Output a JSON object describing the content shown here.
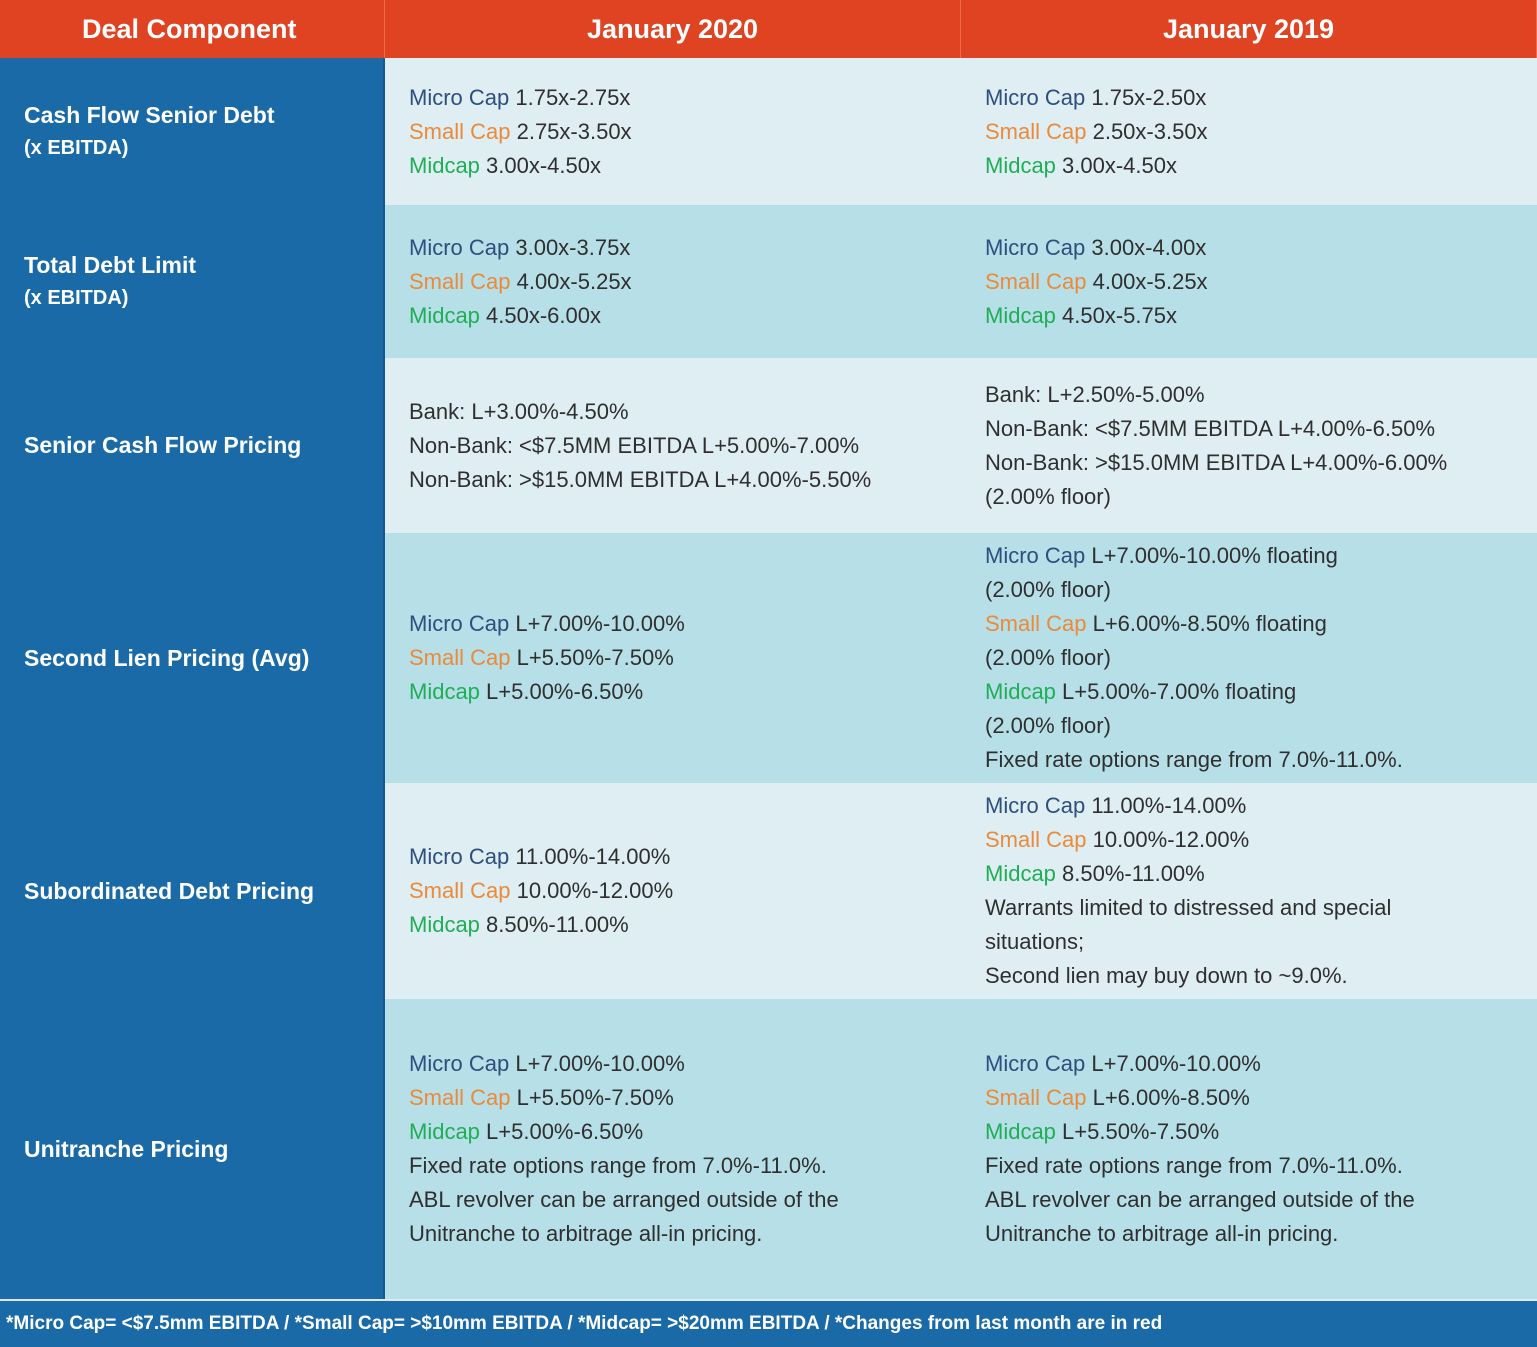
{
  "header": {
    "col1": "Deal Component",
    "col2": "January 2020",
    "col3": "January 2019"
  },
  "colors": {
    "header_bg": "#e04322",
    "label_bg": "#1b6aa8",
    "row_light": "#deeef3",
    "row_dark": "#b7dfe7",
    "micro_cap": "#2e4e7e",
    "small_cap": "#ea8a3a",
    "midcap": "#1fae55"
  },
  "rows": [
    {
      "label": "Cash Flow Senior Debt",
      "sublabel": "(x EBITDA)",
      "jan2020": [
        {
          "tag": "Micro Cap",
          "text": " 1.75x-2.75x"
        },
        {
          "tag": "Small Cap",
          "text": " 2.75x-3.50x"
        },
        {
          "tag": "Midcap",
          "text": " 3.00x-4.50x"
        }
      ],
      "jan2019": [
        {
          "tag": "Micro Cap",
          "text": " 1.75x-2.50x"
        },
        {
          "tag": "Small Cap",
          "text": " 2.50x-3.50x"
        },
        {
          "tag": "Midcap",
          "text": " 3.00x-4.50x"
        }
      ]
    },
    {
      "label": "Total Debt Limit",
      "sublabel": "(x EBITDA)",
      "jan2020": [
        {
          "tag": "Micro Cap",
          "text": " 3.00x-3.75x"
        },
        {
          "tag": "Small Cap",
          "text": " 4.00x-5.25x"
        },
        {
          "tag": "Midcap",
          "text": " 4.50x-6.00x"
        }
      ],
      "jan2019": [
        {
          "tag": "Micro Cap",
          "text": " 3.00x-4.00x"
        },
        {
          "tag": "Small Cap",
          "text": " 4.00x-5.25x"
        },
        {
          "tag": "Midcap",
          "text": " 4.50x-5.75x"
        }
      ]
    },
    {
      "label": "Senior Cash Flow Pricing",
      "jan2020": [
        {
          "text": "Bank: L+3.00%-4.50%"
        },
        {
          "text": "Non-Bank: <$7.5MM EBITDA L+5.00%-7.00%"
        },
        {
          "text": "Non-Bank: >$15.0MM EBITDA L+4.00%-5.50%"
        }
      ],
      "jan2019": [
        {
          "text": "Bank: L+2.50%-5.00%"
        },
        {
          "text": "Non-Bank: <$7.5MM EBITDA L+4.00%-6.50%"
        },
        {
          "text": "Non-Bank: >$15.0MM EBITDA L+4.00%-6.00%"
        },
        {
          "text": "(2.00% floor)"
        }
      ]
    },
    {
      "label": "Second Lien Pricing (Avg)",
      "jan2020": [
        {
          "tag": "Micro Cap",
          "text": " L+7.00%-10.00%"
        },
        {
          "tag": "Small Cap",
          "text": " L+5.50%-7.50%"
        },
        {
          "tag": "Midcap",
          "text": " L+5.00%-6.50%"
        }
      ],
      "jan2019": [
        {
          "tag": "Micro Cap",
          "text": " L+7.00%-10.00% floating"
        },
        {
          "text": "(2.00% floor)"
        },
        {
          "tag": "Small Cap",
          "text": " L+6.00%-8.50% floating"
        },
        {
          "text": "(2.00% floor)"
        },
        {
          "tag": "Midcap",
          "text": " L+5.00%-7.00% floating"
        },
        {
          "text": "(2.00% floor)"
        },
        {
          "text": "Fixed rate options range from 7.0%-11.0%."
        }
      ]
    },
    {
      "label": "Subordinated Debt Pricing",
      "jan2020": [
        {
          "tag": "Micro Cap",
          "text": " 11.00%-14.00%"
        },
        {
          "tag": "Small Cap",
          "text": " 10.00%-12.00%"
        },
        {
          "tag": "Midcap",
          "text": " 8.50%-11.00%"
        }
      ],
      "jan2019": [
        {
          "tag": "Micro Cap",
          "text": " 11.00%-14.00%"
        },
        {
          "tag": "Small Cap",
          "text": " 10.00%-12.00%"
        },
        {
          "tag": "Midcap",
          "text": " 8.50%-11.00%"
        },
        {
          "text": "Warrants limited to distressed and special"
        },
        {
          "text": "situations;"
        },
        {
          "text": "Second lien may buy down to ~9.0%."
        }
      ]
    },
    {
      "label": "Unitranche Pricing",
      "jan2020": [
        {
          "tag": "Micro Cap",
          "text": " L+7.00%-10.00%"
        },
        {
          "tag": "Small Cap",
          "text": " L+5.50%-7.50%"
        },
        {
          "tag": "Midcap",
          "text": " L+5.00%-6.50%"
        },
        {
          "text": "Fixed rate options range from 7.0%-11.0%."
        },
        {
          "text": "ABL revolver can be arranged outside of the"
        },
        {
          "text": "Unitranche to arbitrage all-in pricing."
        }
      ],
      "jan2019": [
        {
          "tag": "Micro Cap",
          "text": " L+7.00%-10.00%"
        },
        {
          "tag": "Small Cap",
          "text": " L+6.00%-8.50%"
        },
        {
          "tag": "Midcap",
          "text": " L+5.50%-7.50%"
        },
        {
          "text": "Fixed rate options range from 7.0%-11.0%."
        },
        {
          "text": "ABL revolver can be arranged outside of the"
        },
        {
          "text": "Unitranche to arbitrage all-in pricing."
        }
      ]
    }
  ],
  "footer": "*Micro Cap= <$7.5mm EBITDA / *Small Cap= >$10mm EBITDA / *Midcap= >$20mm EBITDA / *Changes from last month are in red"
}
